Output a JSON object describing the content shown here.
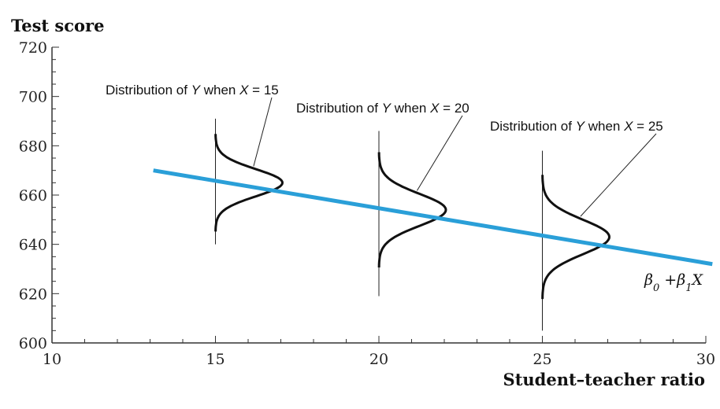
{
  "chart_data": {
    "type": "line",
    "title": "",
    "ylabel": "Test score",
    "xlabel": "Student–teacher ratio",
    "xlim": [
      10,
      30
    ],
    "ylim": [
      600,
      720
    ],
    "x_ticks": [
      10,
      15,
      20,
      25,
      30
    ],
    "y_ticks": [
      600,
      620,
      640,
      660,
      680,
      700,
      720
    ],
    "x_minor_step": 1,
    "y_minor_step": 5,
    "grid": false,
    "regression_line": {
      "label_parts": [
        "β",
        "0",
        " +",
        "β",
        "1",
        "X"
      ],
      "color": "#2a9fd8",
      "x": [
        13.1,
        30.2
      ],
      "y": [
        670,
        632
      ]
    },
    "distributions": [
      {
        "x": 15,
        "mean": 665,
        "sd": 5.5,
        "y_range": [
          640,
          691
        ],
        "label_parts": [
          "Distribution of ",
          "Y",
          " when ",
          "X",
          " = 15"
        ]
      },
      {
        "x": 20,
        "mean": 654,
        "sd": 6.5,
        "y_range": [
          619,
          686
        ],
        "label_parts": [
          "Distribution of ",
          "Y",
          " when ",
          "X",
          " = 20"
        ]
      },
      {
        "x": 25,
        "mean": 643,
        "sd": 7.0,
        "y_range": [
          605,
          678
        ],
        "label_parts": [
          "Distribution of ",
          "Y",
          " when ",
          "X",
          " = 25"
        ]
      }
    ]
  }
}
